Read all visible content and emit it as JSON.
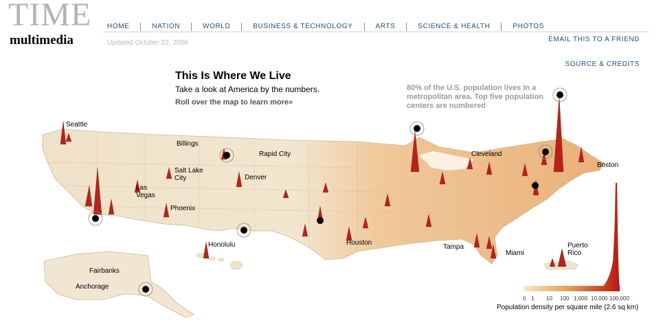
{
  "brand": {
    "time": "TIME",
    "multimedia": "multimedia"
  },
  "updated": "Updated October 22, 2006",
  "nav": [
    "HOME",
    "NATION",
    "WORLD",
    "BUSINESS & TECHNOLOGY",
    "ARTS",
    "SCIENCE & HEALTH",
    "PHOTOS"
  ],
  "email_link": "EMAIL THIS TO A FRIEND",
  "source_link": "SOURCE & CREDITS",
  "headline": {
    "title": "This Is Where We Live",
    "subtitle": "Take a look at America by the numbers.",
    "rollover": "Roll over the map to learn more»"
  },
  "note": "80% of the U.S. population lives in a metropolitan area. Top five population centers are numbered",
  "cities": {
    "seattle": "Seattle",
    "billings": "Billings",
    "rapid_city": "Rapid City",
    "salt_lake_city": "Salt Lake City",
    "denver": "Denver",
    "las_vegas": "Las Vegas",
    "phoenix": "Phoenix",
    "honolulu": "Honolulu",
    "houston": "Houston",
    "cleveland": "Cleveland",
    "boston": "Boston",
    "tampa": "Tampa",
    "miami": "Miami",
    "puerto_rico": "Puerto Rico",
    "fairbanks": "Fairbanks",
    "anchorage": "Anchorage"
  },
  "legend": {
    "ticks": [
      "0",
      "1",
      "10",
      "100",
      "1,000",
      "10,000",
      "100,000"
    ],
    "caption": "Population density per square mile (2.6 sq km)",
    "colors": {
      "low": "#f6e9c8",
      "mid": "#e8a15a",
      "high": "#b41a12"
    }
  },
  "colors": {
    "land": "#f1e4cc",
    "spike": "#b5231b",
    "marker": "#000000",
    "nav_link": "#1d4f7c"
  }
}
